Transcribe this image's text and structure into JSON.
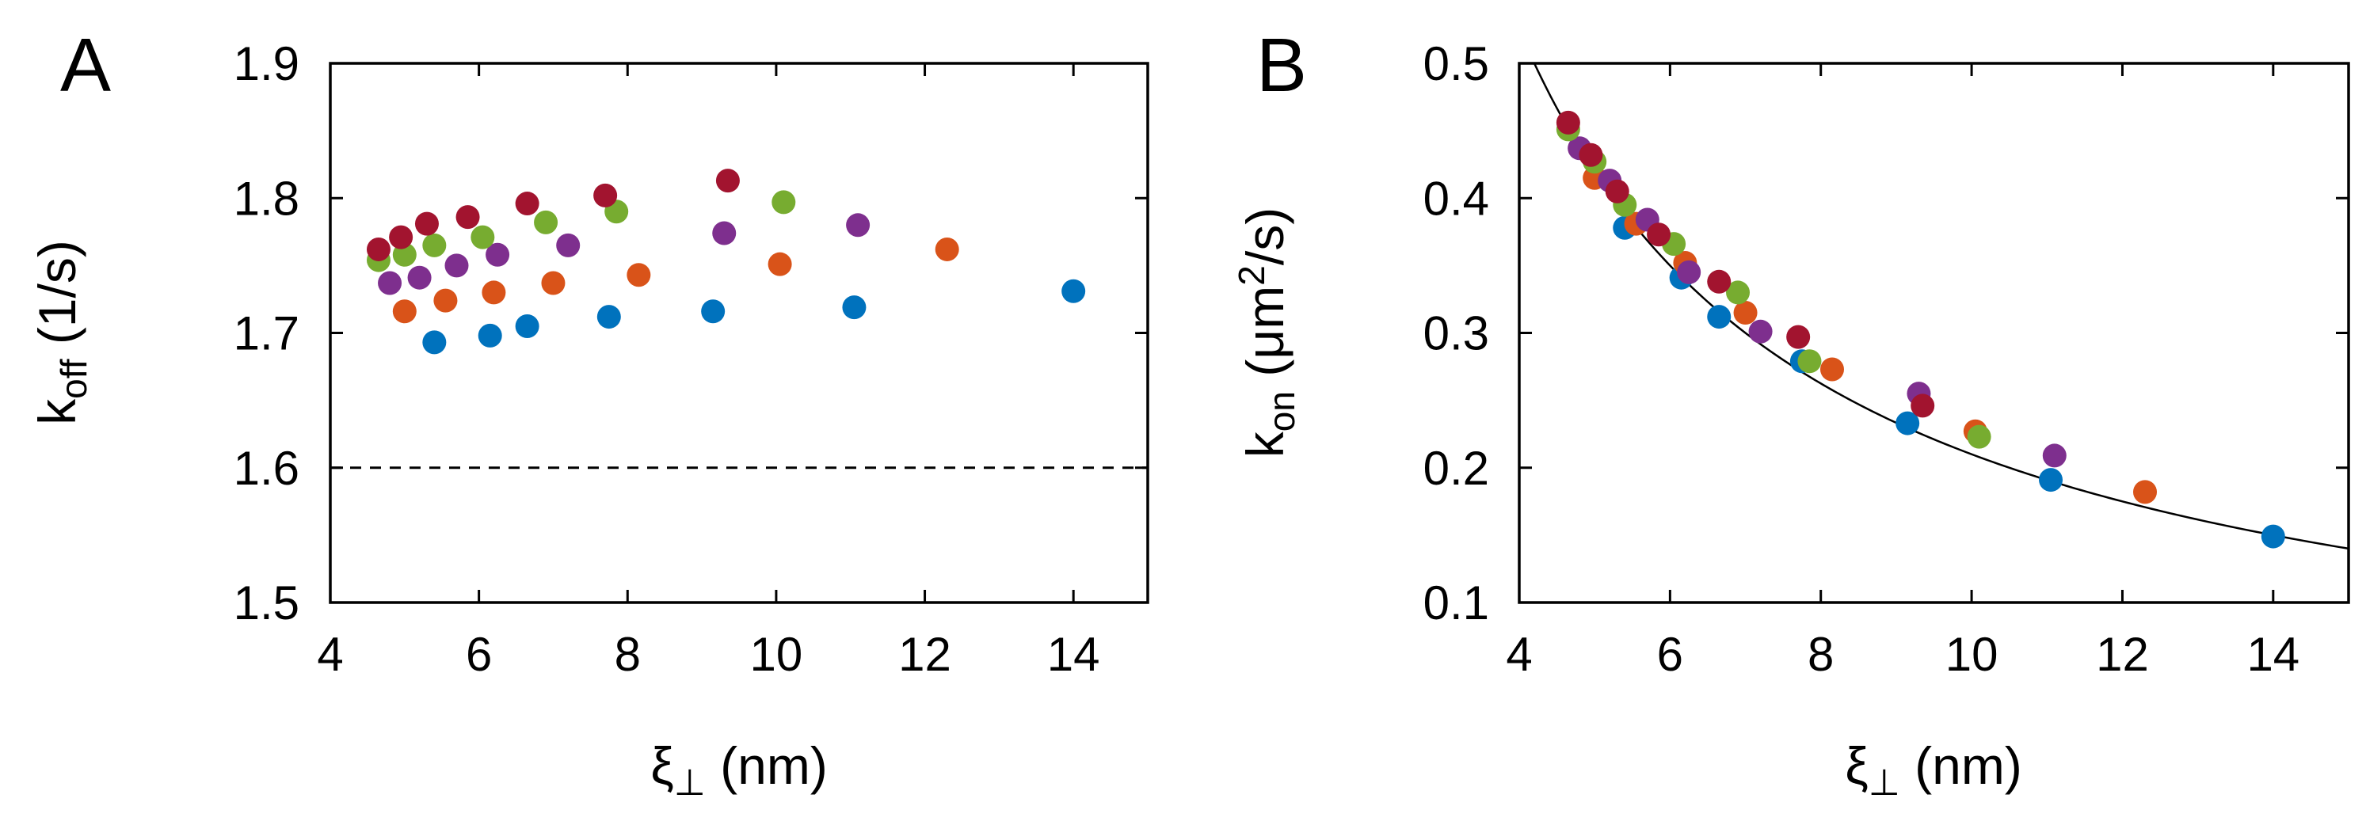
{
  "chart_data": [
    {
      "panel": "A",
      "type": "scatter",
      "xlabel_main": "ξ",
      "xlabel_sub": "⊥",
      "xlabel_units": " (nm)",
      "ylabel_main": "k",
      "ylabel_sub": "off",
      "ylabel_units": " (1/s)",
      "xlim": [
        4,
        15
      ],
      "ylim": [
        1.5,
        1.9
      ],
      "xticks": [
        4,
        6,
        8,
        10,
        12,
        14
      ],
      "yticks": [
        1.5,
        1.6,
        1.7,
        1.8,
        1.9
      ],
      "xtick_labels": [
        "4",
        "6",
        "8",
        "10",
        "12",
        "14"
      ],
      "ytick_labels": [
        "1.5",
        "1.6",
        "1.7",
        "1.8",
        "1.9"
      ],
      "reference_line": {
        "y": 1.6,
        "style": "dashed"
      },
      "series": [
        {
          "name": "blue",
          "color": "#0072bd",
          "x": [
            5.4,
            6.15,
            6.65,
            7.75,
            9.15,
            11.05,
            14.0
          ],
          "y": [
            1.693,
            1.698,
            1.705,
            1.712,
            1.716,
            1.719,
            1.731
          ]
        },
        {
          "name": "orange",
          "color": "#d95319",
          "x": [
            5.0,
            5.55,
            6.2,
            7.0,
            8.15,
            10.05,
            12.3
          ],
          "y": [
            1.716,
            1.724,
            1.73,
            1.737,
            1.743,
            1.751,
            1.762
          ]
        },
        {
          "name": "purple",
          "color": "#7e2f8e",
          "x": [
            4.8,
            5.2,
            5.7,
            6.25,
            7.2,
            9.3,
            11.1
          ],
          "y": [
            1.737,
            1.741,
            1.75,
            1.758,
            1.765,
            1.774,
            1.78
          ]
        },
        {
          "name": "green",
          "color": "#77ac30",
          "x": [
            4.65,
            5.0,
            5.4,
            6.05,
            6.9,
            7.85,
            10.1
          ],
          "y": [
            1.754,
            1.758,
            1.765,
            1.771,
            1.782,
            1.79,
            1.797
          ]
        },
        {
          "name": "red",
          "color": "#a2142f",
          "x": [
            4.65,
            4.95,
            5.3,
            5.85,
            6.65,
            7.7,
            9.35
          ],
          "y": [
            1.762,
            1.771,
            1.781,
            1.786,
            1.796,
            1.802,
            1.813
          ]
        }
      ]
    },
    {
      "panel": "B",
      "type": "scatter",
      "xlabel_main": "ξ",
      "xlabel_sub": "⊥",
      "xlabel_units": " (nm)",
      "ylabel_main": "k",
      "ylabel_sub": "on",
      "ylabel_units_pre": " (μm",
      "ylabel_sup": "2",
      "ylabel_units_post": "/s)",
      "xlim": [
        4,
        15
      ],
      "ylim": [
        0.1,
        0.5
      ],
      "xticks": [
        4,
        6,
        8,
        10,
        12,
        14
      ],
      "yticks": [
        0.1,
        0.2,
        0.3,
        0.4,
        0.5
      ],
      "xtick_labels": [
        "4",
        "6",
        "8",
        "10",
        "12",
        "14"
      ],
      "ytick_labels": [
        "0.1",
        "0.2",
        "0.3",
        "0.4",
        "0.5"
      ],
      "fit_curve": {
        "form": "y = 2.1 / x",
        "coefficient": 2.1,
        "x_range": [
          4.2,
          15
        ]
      },
      "series": [
        {
          "name": "blue",
          "color": "#0072bd",
          "x": [
            5.4,
            6.15,
            6.65,
            7.75,
            9.15,
            11.05,
            14.0
          ],
          "y": [
            0.378,
            0.341,
            0.312,
            0.279,
            0.233,
            0.191,
            0.149
          ]
        },
        {
          "name": "orange",
          "color": "#d95319",
          "x": [
            5.0,
            5.55,
            6.2,
            7.0,
            8.15,
            10.05,
            12.3
          ],
          "y": [
            0.415,
            0.381,
            0.352,
            0.315,
            0.273,
            0.227,
            0.182
          ]
        },
        {
          "name": "purple",
          "color": "#7e2f8e",
          "x": [
            4.8,
            5.2,
            5.7,
            6.25,
            7.2,
            9.3,
            11.1
          ],
          "y": [
            0.437,
            0.413,
            0.384,
            0.345,
            0.301,
            0.255,
            0.209
          ]
        },
        {
          "name": "green",
          "color": "#77ac30",
          "x": [
            4.65,
            5.0,
            5.4,
            6.05,
            6.9,
            7.85,
            10.1
          ],
          "y": [
            0.451,
            0.427,
            0.395,
            0.366,
            0.33,
            0.279,
            0.223
          ]
        },
        {
          "name": "red",
          "color": "#a2142f",
          "x": [
            4.65,
            4.95,
            5.3,
            5.85,
            6.65,
            7.7,
            9.35
          ],
          "y": [
            0.456,
            0.432,
            0.405,
            0.373,
            0.338,
            0.297,
            0.246
          ]
        }
      ]
    }
  ]
}
